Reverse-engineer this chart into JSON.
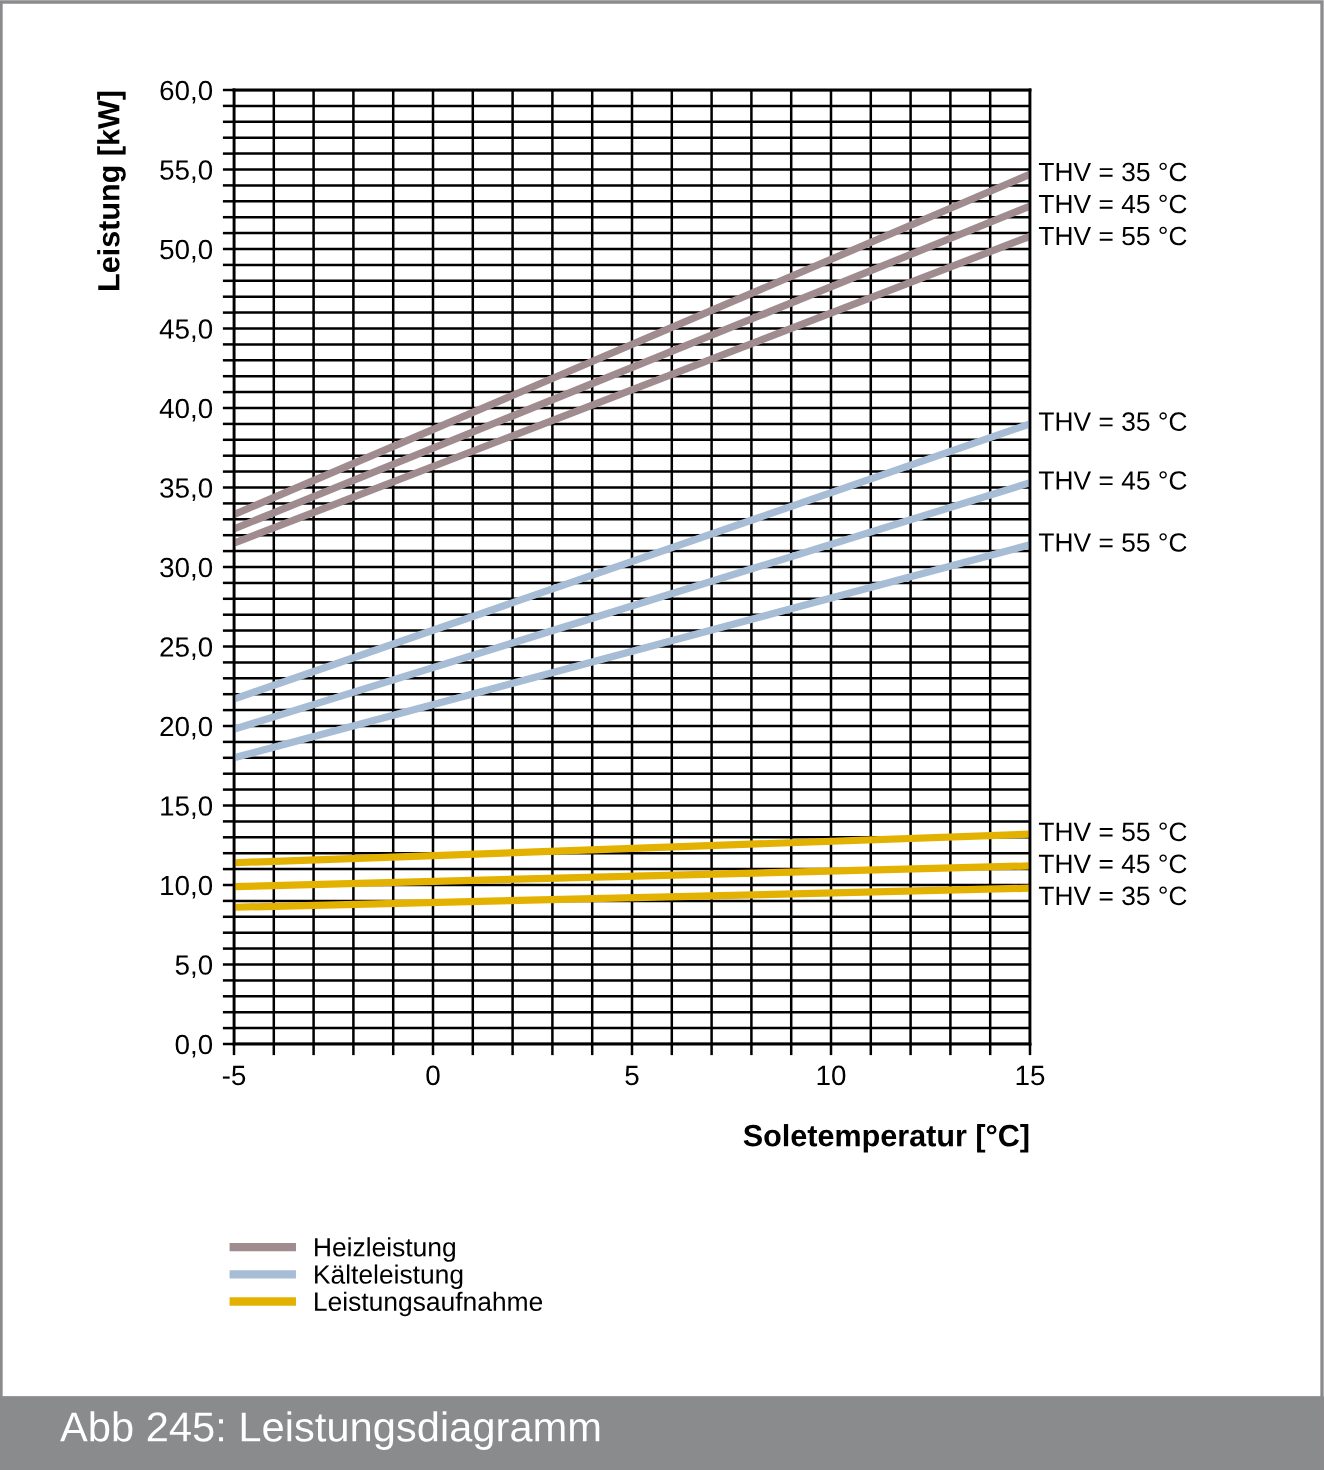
{
  "chart_data": {
    "type": "line",
    "xlabel": "Soletemperatur [°C]",
    "ylabel": "Leistung [kW]",
    "x": [
      -5,
      15
    ],
    "series": [
      {
        "name": "Heizleistung",
        "color": "#a08c8e",
        "values": [
          33.3,
          54.7
        ]
      },
      {
        "color": "#a08c8e",
        "values": [
          32.4,
          52.7
        ]
      },
      {
        "color": "#a08c8e",
        "values": [
          31.5,
          50.8
        ]
      },
      {
        "name": "Kälteleistung",
        "color": "#a7bdd5",
        "values": [
          21.7,
          39.0
        ]
      },
      {
        "color": "#a7bdd5",
        "values": [
          19.8,
          35.3
        ]
      },
      {
        "color": "#a7bdd5",
        "values": [
          18.0,
          31.4
        ]
      },
      {
        "name": "Leistungsaufnahme",
        "color": "#e3b200",
        "values": [
          11.4,
          13.2
        ]
      },
      {
        "color": "#e3b200",
        "values": [
          9.9,
          11.2
        ]
      },
      {
        "color": "#e3b200",
        "values": [
          8.6,
          9.8
        ]
      }
    ],
    "xlim": [
      -5,
      15
    ],
    "xticks": [
      -5,
      {
        "value": -4,
        "label": null
      },
      {
        "value": -3,
        "label": null
      },
      {
        "value": -2,
        "label": null
      },
      {
        "value": -1,
        "label": null
      },
      0,
      {
        "value": 1,
        "label": null
      },
      {
        "value": 2,
        "label": null
      },
      {
        "value": 3,
        "label": null
      },
      {
        "value": 4,
        "label": null
      },
      5,
      {
        "value": 6,
        "label": null
      },
      {
        "value": 7,
        "label": null
      },
      {
        "value": 8,
        "label": null
      },
      {
        "value": 9,
        "label": null
      },
      10,
      {
        "value": 11,
        "label": null
      },
      {
        "value": 12,
        "label": null
      },
      {
        "value": 13,
        "label": null
      },
      {
        "value": 14,
        "label": null
      },
      15
    ],
    "ylim": [
      0,
      60
    ],
    "yticks": [
      {
        "value": 0,
        "label": "0,0"
      },
      {
        "value": 1,
        "label": null
      },
      {
        "value": 2,
        "label": null
      },
      {
        "value": 3,
        "label": null
      },
      {
        "value": 4,
        "label": null
      },
      {
        "value": 5,
        "label": "5,0"
      },
      {
        "value": 6,
        "label": null
      },
      {
        "value": 7,
        "label": null
      },
      {
        "value": 8,
        "label": null
      },
      {
        "value": 9,
        "label": null
      },
      {
        "value": 10,
        "label": "10,0"
      },
      {
        "value": 11,
        "label": null
      },
      {
        "value": 12,
        "label": null
      },
      {
        "value": 13,
        "label": null
      },
      {
        "value": 14,
        "label": null
      },
      {
        "value": 15,
        "label": "15,0"
      },
      {
        "value": 16,
        "label": null
      },
      {
        "value": 17,
        "label": null
      },
      {
        "value": 18,
        "label": null
      },
      {
        "value": 19,
        "label": null
      },
      {
        "value": 20,
        "label": "20,0"
      },
      {
        "value": 21,
        "label": null
      },
      {
        "value": 22,
        "label": null
      },
      {
        "value": 23,
        "label": null
      },
      {
        "value": 24,
        "label": null
      },
      {
        "value": 25,
        "label": "25,0"
      },
      {
        "value": 26,
        "label": null
      },
      {
        "value": 27,
        "label": null
      },
      {
        "value": 28,
        "label": null
      },
      {
        "value": 29,
        "label": null
      },
      {
        "value": 30,
        "label": "30,0"
      },
      {
        "value": 31,
        "label": null
      },
      {
        "value": 32,
        "label": null
      },
      {
        "value": 33,
        "label": null
      },
      {
        "value": 34,
        "label": null
      },
      {
        "value": 35,
        "label": "35,0"
      },
      {
        "value": 36,
        "label": null
      },
      {
        "value": 37,
        "label": null
      },
      {
        "value": 38,
        "label": null
      },
      {
        "value": 39,
        "label": null
      },
      {
        "value": 40,
        "label": "40,0"
      },
      {
        "value": 41,
        "label": null
      },
      {
        "value": 42,
        "label": null
      },
      {
        "value": 43,
        "label": null
      },
      {
        "value": 44,
        "label": null
      },
      {
        "value": 45,
        "label": "45,0"
      },
      {
        "value": 46,
        "label": null
      },
      {
        "value": 47,
        "label": null
      },
      {
        "value": 48,
        "label": null
      },
      {
        "value": 49,
        "label": null
      },
      {
        "value": 50,
        "label": "50,0"
      },
      {
        "value": 51,
        "label": null
      },
      {
        "value": 52,
        "label": null
      },
      {
        "value": 53,
        "label": null
      },
      {
        "value": 54,
        "label": null
      },
      {
        "value": 55,
        "label": "55,0"
      },
      {
        "value": 56,
        "label": null
      },
      {
        "value": 57,
        "label": null
      },
      {
        "value": 58,
        "label": null
      },
      {
        "value": 59,
        "label": null
      },
      {
        "value": 60,
        "label": "60,0"
      }
    ],
    "grid": true,
    "marker": "none",
    "line_style": "solid",
    "legend": "bottom left",
    "annotations": [
      "THV = 35 °C",
      "THV = 45 °C",
      "THV = 55 °C",
      "THV = 35 °C",
      "THV = 45 °C",
      "THV = 55 °C",
      "THV = 55 °C",
      "THV = 45 °C",
      "THV = 35 °C",
      "Abb 245: Leistungsdiagramm"
    ]
  }
}
